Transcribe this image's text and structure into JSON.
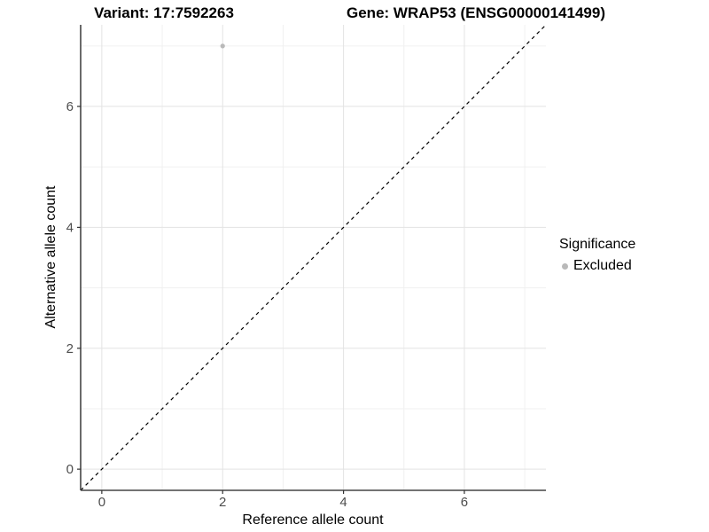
{
  "chart_data": {
    "type": "scatter",
    "title_left": "Variant: 17:7592263",
    "title_right": "Gene: WRAP53 (ENSG00000141499)",
    "xlabel": "Reference allele count",
    "ylabel": "Alternative allele count",
    "xlim": [
      -0.35,
      7.35
    ],
    "ylim": [
      -0.35,
      7.35
    ],
    "x_ticks": [
      0,
      2,
      4,
      6
    ],
    "y_ticks": [
      0,
      2,
      4,
      6
    ],
    "x_minor_grid": [
      1,
      3,
      5,
      7
    ],
    "y_minor_grid": [
      1,
      3,
      5,
      7
    ],
    "grid": true,
    "series": [
      {
        "name": "Excluded",
        "color": "#b9b9b9",
        "points": [
          {
            "x": 2,
            "y": 7
          }
        ]
      }
    ],
    "identity_line": {
      "show": true,
      "style": "dashed",
      "color": "#000000",
      "equation": "y = x"
    },
    "legend": {
      "title": "Significance",
      "position": "right",
      "items": [
        {
          "label": "Excluded",
          "color": "#b9b9b9",
          "marker": "circle-icon"
        }
      ]
    },
    "colors": {
      "background": "#ffffff",
      "grid_major": "#e3e3e3",
      "grid_minor": "#f0f0f0",
      "axis_line": "#454545",
      "tick_mark": "#333333",
      "tick_label": "#4d4d4d",
      "point": "#b9b9b9"
    }
  }
}
